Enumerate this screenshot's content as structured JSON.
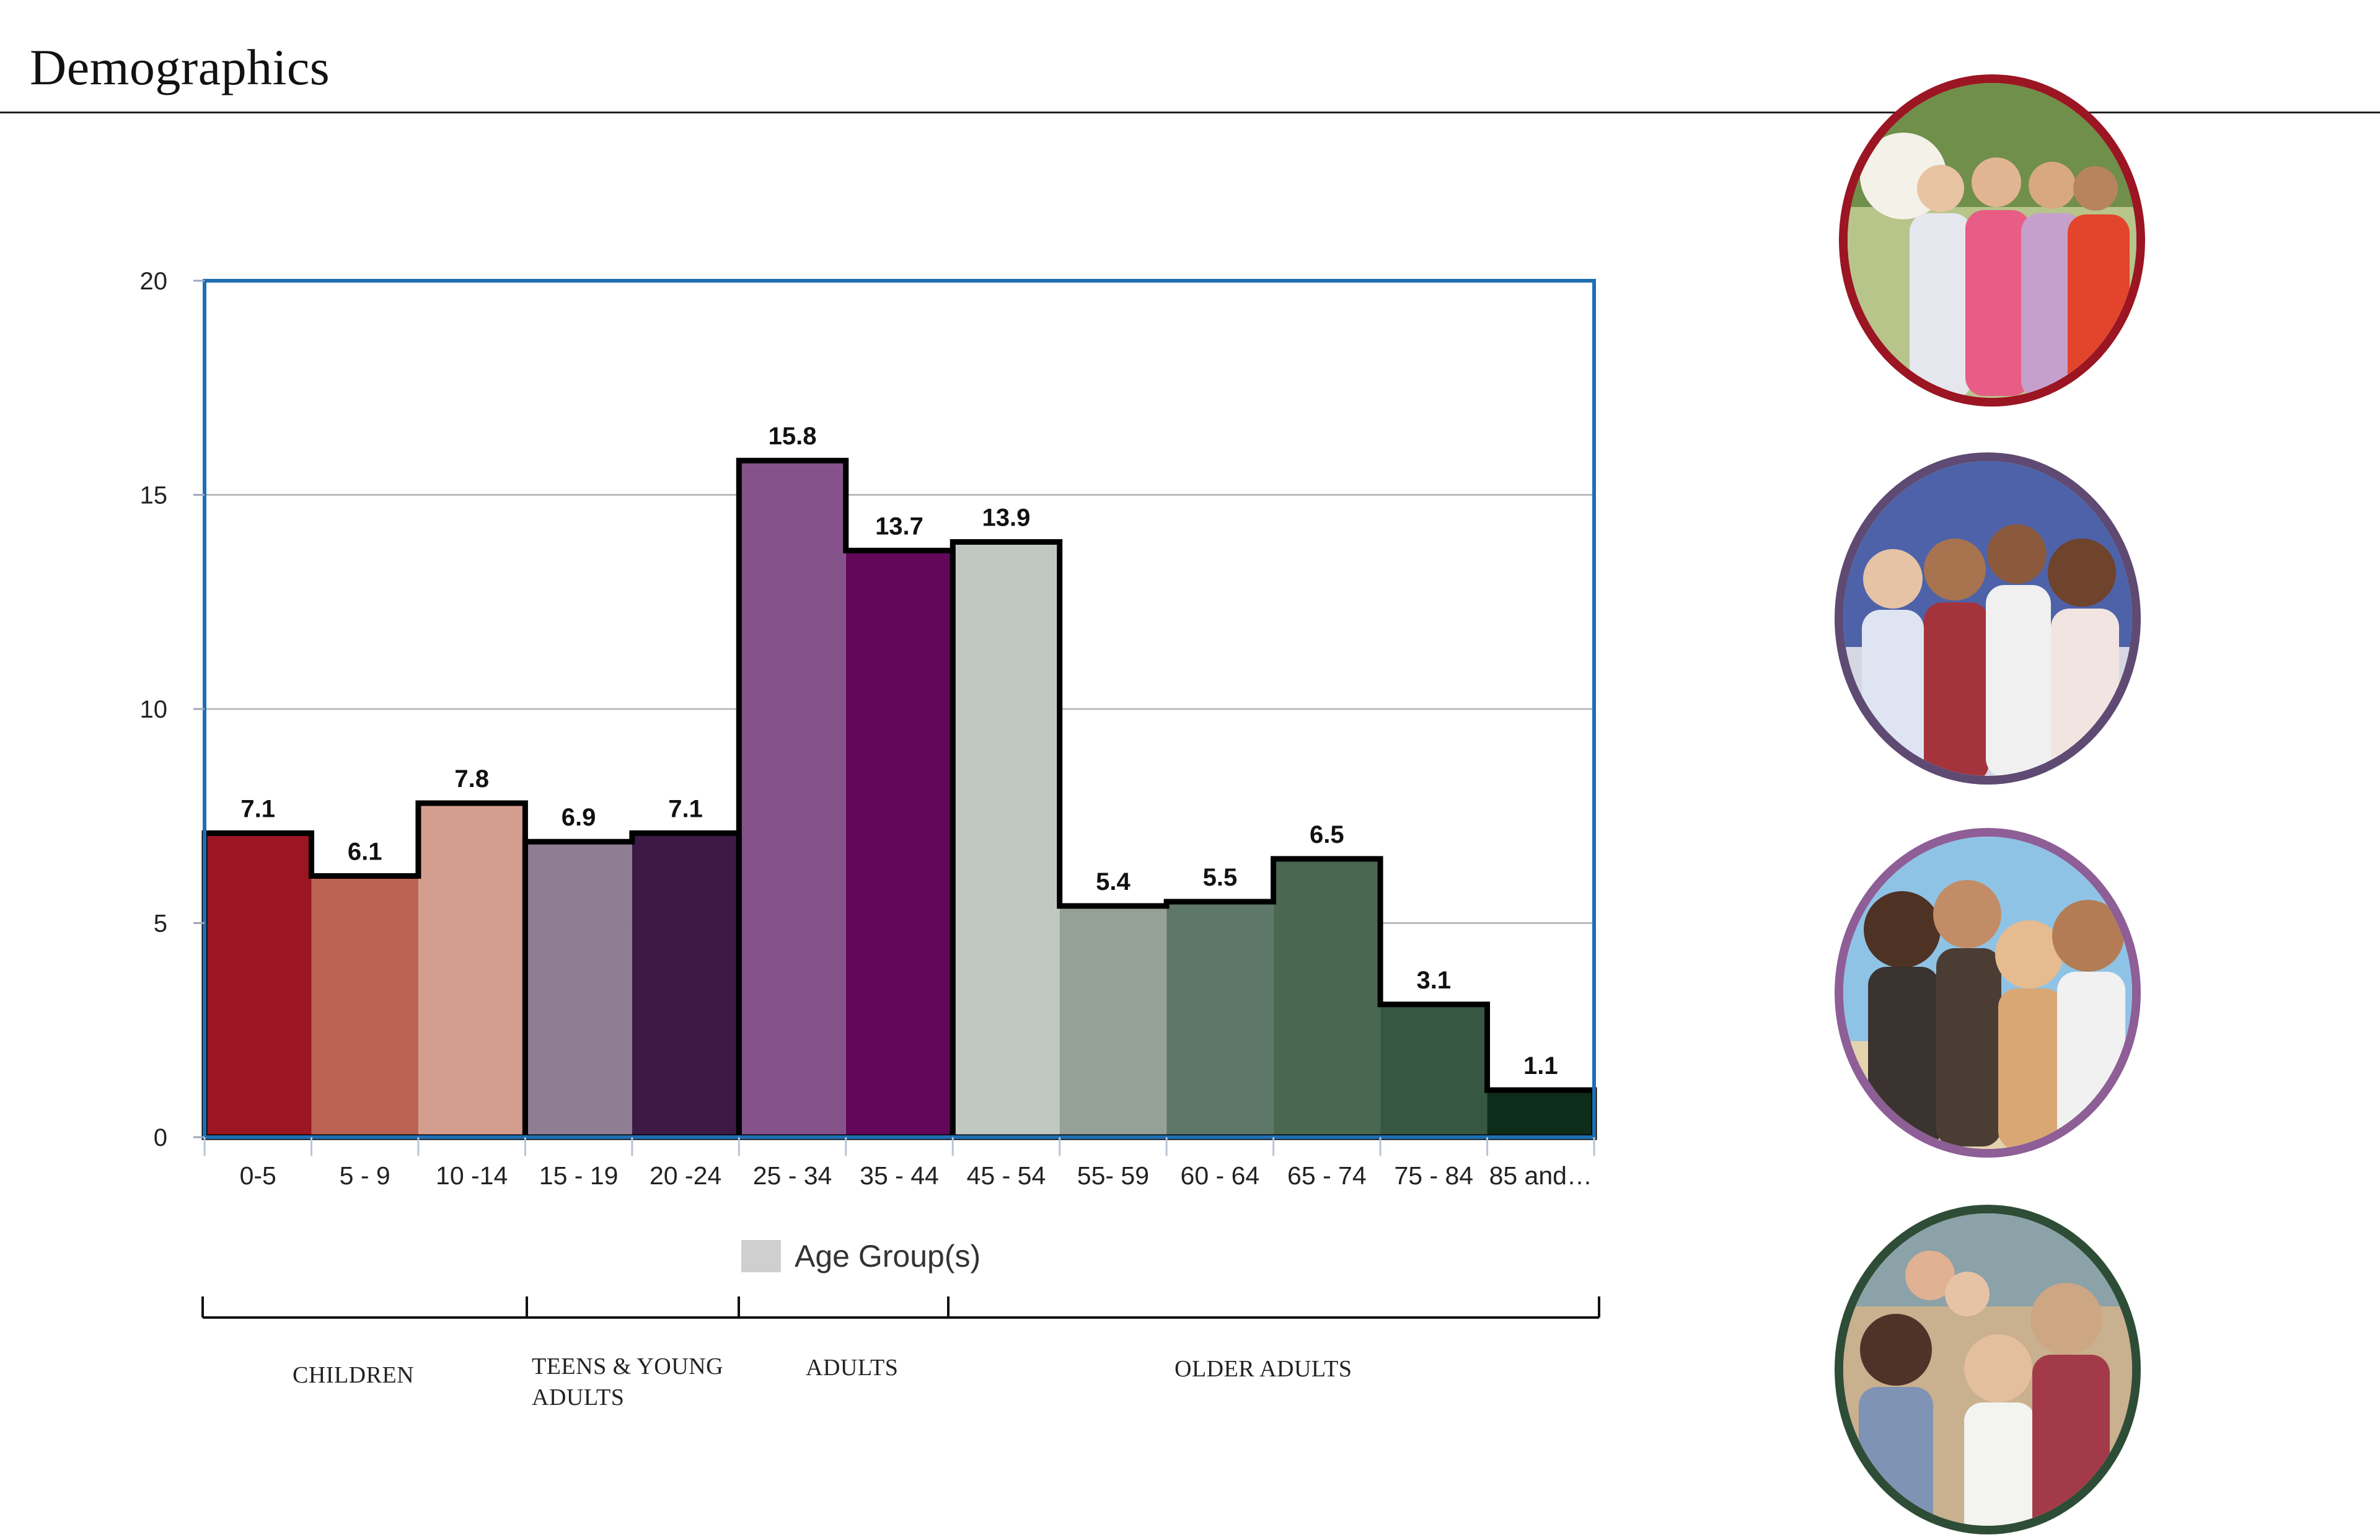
{
  "page": {
    "title": "Demographics"
  },
  "chart_data": {
    "type": "bar",
    "categories": [
      "0-5",
      "5 - 9",
      "10 -14",
      "15 - 19",
      "20 -24",
      "25 - 34",
      "35 - 44",
      "45 - 54",
      "55- 59",
      "60 - 64",
      "65 - 74",
      "75 - 84",
      "85 and…"
    ],
    "series": [
      {
        "name": "Age Group(s)",
        "values": [
          7.1,
          6.1,
          7.8,
          6.9,
          7.1,
          15.8,
          13.7,
          13.9,
          5.4,
          5.5,
          6.5,
          3.1,
          1.1
        ]
      }
    ],
    "bar_colors": [
      "#9b1522",
      "#ba6253",
      "#d49e8f",
      "#8f7d94",
      "#3c1a45",
      "#86528a",
      "#63075b",
      "#c1c8c1",
      "#95a197",
      "#5d7869",
      "#4a6752",
      "#365742",
      "#0d2c19"
    ],
    "value_labels": [
      "7.1",
      "6.1",
      "7.8",
      "6.9",
      "7.1",
      "15.8",
      "13.7",
      "13.9",
      "5.4",
      "5.5",
      "6.5",
      "3.1",
      "1.1"
    ],
    "ylim": [
      0,
      20
    ],
    "yticks": [
      0,
      5,
      10,
      15,
      20
    ],
    "ytick_labels": [
      "0",
      "5",
      "10",
      "15",
      "20"
    ],
    "grid": true,
    "legend": {
      "label": "Age Group(s)",
      "swatch_color": "#cfcfcf",
      "position": "bottom"
    },
    "frame_color": "#1f6fb2",
    "groups": [
      {
        "label": "CHILDREN",
        "start_index": 0,
        "end_index": 2
      },
      {
        "label": "TEENS & YOUNG ADULTS",
        "start_index": 3,
        "end_index": 4
      },
      {
        "label": "ADULTS",
        "start_index": 5,
        "end_index": 6
      },
      {
        "label": "OLDER ADULTS",
        "start_index": 7,
        "end_index": 12
      }
    ]
  },
  "photos": [
    {
      "name": "children-photo",
      "ring_color": "#9b1522",
      "bg": "#b7c48a"
    },
    {
      "name": "teens-photo",
      "ring_color": "#5e4a72",
      "bg": "#4d62a8"
    },
    {
      "name": "adults-photo",
      "ring_color": "#8e5e96",
      "bg": "#8fc3e6"
    },
    {
      "name": "older-adults-photo",
      "ring_color": "#2e4d37",
      "bg": "#c9b08e"
    }
  ]
}
